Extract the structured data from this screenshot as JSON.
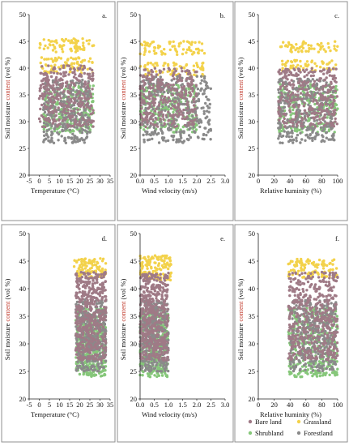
{
  "colors": {
    "bare_land": "#9f7a86",
    "grassland": "#f3d24b",
    "shrubland": "#86c77a",
    "forestland": "#8a8a8a",
    "red_word": "#c0392b",
    "panel_border": "#8f8f8f"
  },
  "legend": {
    "items": [
      {
        "label": "Bare land",
        "color_key": "bare_land"
      },
      {
        "label": "Grassland",
        "color_key": "grassland"
      },
      {
        "label": "Shrubland",
        "color_key": "shrubland"
      },
      {
        "label": "Forestland",
        "color_key": "forestland"
      }
    ]
  },
  "chart_data": [
    {
      "type": "scatter",
      "panel": "a.",
      "xlabel": "Temperature (°C)",
      "ylabel": "Soil moisture content (vol %)",
      "xlim": [
        -5,
        35
      ],
      "ylim": [
        20,
        50
      ],
      "xticks": [
        "-5",
        "0",
        "5",
        "10",
        "15",
        "20",
        "25",
        "30",
        "35"
      ],
      "yticks": [
        "20",
        "25",
        "30",
        "35",
        "40",
        "45",
        "50"
      ],
      "series": [
        {
          "name": "Grassland",
          "x_range": [
            0,
            27
          ],
          "y_bands": [
            [
              43.0,
              45.5
            ],
            [
              39.0,
              42.0
            ]
          ]
        },
        {
          "name": "Shrubland",
          "x_range": [
            2,
            27
          ],
          "y_bands": [
            [
              28.0,
              37.0
            ]
          ]
        },
        {
          "name": "Forestland",
          "x_range": [
            2,
            25
          ],
          "y_bands": [
            [
              26.0,
              38.0
            ]
          ]
        },
        {
          "name": "Bare land",
          "x_range": [
            0,
            27
          ],
          "y_bands": [
            [
              29.0,
              40.5
            ]
          ]
        }
      ]
    },
    {
      "type": "scatter",
      "panel": "b.",
      "xlabel": "Wind velocity (m/s)",
      "ylabel": "Soil moisture content (vol %)",
      "xlim": [
        0,
        3
      ],
      "ylim": [
        20,
        50
      ],
      "xticks": [
        "0.0",
        "0.5",
        "1.0",
        "1.5",
        "2.0",
        "2.5",
        "3.0"
      ],
      "yticks": [
        "20",
        "25",
        "30",
        "35",
        "40",
        "45",
        "50"
      ],
      "series": [
        {
          "name": "Grassland",
          "x_range": [
            0,
            2.3
          ],
          "y_bands": [
            [
              42.5,
              45.0
            ],
            [
              38.5,
              41.0
            ]
          ]
        },
        {
          "name": "Shrubland",
          "x_range": [
            0,
            2.0
          ],
          "y_bands": [
            [
              28.0,
              37.0
            ]
          ]
        },
        {
          "name": "Forestland",
          "x_range": [
            0,
            2.5
          ],
          "y_bands": [
            [
              26.0,
              38.5
            ]
          ]
        },
        {
          "name": "Bare land",
          "x_range": [
            0,
            2.0
          ],
          "y_bands": [
            [
              29.0,
              40.0
            ]
          ]
        }
      ]
    },
    {
      "type": "scatter",
      "panel": "c.",
      "xlabel": "Relative huminity (%)",
      "ylabel": "Soil moisture content (vol %)",
      "xlim": [
        0,
        100
      ],
      "ylim": [
        20,
        50
      ],
      "xticks": [
        "0",
        "20",
        "40",
        "60",
        "80",
        "100"
      ],
      "yticks": [
        "20",
        "25",
        "30",
        "35",
        "40",
        "45",
        "50"
      ],
      "series": [
        {
          "name": "Grassland",
          "x_range": [
            28,
            100
          ],
          "y_bands": [
            [
              43.0,
              45.0
            ],
            [
              39.5,
              41.5
            ]
          ]
        },
        {
          "name": "Shrubland",
          "x_range": [
            25,
            100
          ],
          "y_bands": [
            [
              28.0,
              37.0
            ]
          ]
        },
        {
          "name": "Forestland",
          "x_range": [
            25,
            96
          ],
          "y_bands": [
            [
              26.0,
              38.0
            ]
          ]
        },
        {
          "name": "Bare land",
          "x_range": [
            25,
            100
          ],
          "y_bands": [
            [
              29.0,
              40.0
            ]
          ]
        }
      ]
    },
    {
      "type": "scatter",
      "panel": "d.",
      "xlabel": "Temperature (°C)",
      "ylabel": "Soil moisture content (vol %)",
      "xlim": [
        -5,
        35
      ],
      "ylim": [
        20,
        50
      ],
      "xticks": [
        "-5",
        "0",
        "5",
        "10",
        "15",
        "20",
        "25",
        "30",
        "35"
      ],
      "yticks": [
        "20",
        "25",
        "30",
        "35",
        "40",
        "45",
        "50"
      ],
      "series": [
        {
          "name": "Grassland",
          "x_range": [
            17,
            33
          ],
          "y_bands": [
            [
              42.0,
              45.5
            ]
          ]
        },
        {
          "name": "Shrubland",
          "x_range": [
            18,
            33
          ],
          "y_bands": [
            [
              24.0,
              36.5
            ]
          ]
        },
        {
          "name": "Forestland",
          "x_range": [
            18,
            33
          ],
          "y_bands": [
            [
              25.0,
              38.0
            ]
          ]
        },
        {
          "name": "Bare land",
          "x_range": [
            18,
            33
          ],
          "y_bands": [
            [
              27.0,
              43.0
            ]
          ]
        }
      ]
    },
    {
      "type": "scatter",
      "panel": "e.",
      "xlabel": "Wind velocity (m/s)",
      "ylabel": "Soil moisture content (vol %)",
      "xlim": [
        0,
        3
      ],
      "ylim": [
        20,
        50
      ],
      "xticks": [
        "0.0",
        "0.5",
        "1.0",
        "1.5",
        "2.0",
        "2.5",
        "3.0"
      ],
      "yticks": [
        "20",
        "25",
        "30",
        "35",
        "40",
        "45",
        "50"
      ],
      "series": [
        {
          "name": "Grassland",
          "x_range": [
            0,
            1.1
          ],
          "y_bands": [
            [
              41.5,
              46.0
            ]
          ]
        },
        {
          "name": "Shrubland",
          "x_range": [
            0,
            1.0
          ],
          "y_bands": [
            [
              24.0,
              36.5
            ]
          ]
        },
        {
          "name": "Forestland",
          "x_range": [
            0,
            1.0
          ],
          "y_bands": [
            [
              25.0,
              38.0
            ]
          ]
        },
        {
          "name": "Bare land",
          "x_range": [
            0,
            1.0
          ],
          "y_bands": [
            [
              27.0,
              43.0
            ]
          ]
        }
      ]
    },
    {
      "type": "scatter",
      "panel": "f.",
      "xlabel": "Relative huminity (%)",
      "ylabel": "Soil moisture content (vol %)",
      "xlim": [
        0,
        100
      ],
      "ylim": [
        20,
        50
      ],
      "xticks": [
        "0",
        "20",
        "40",
        "60",
        "80",
        "100"
      ],
      "yticks": [
        "20",
        "25",
        "30",
        "35",
        "40",
        "45",
        "50"
      ],
      "series": [
        {
          "name": "Grassland",
          "x_range": [
            38,
            100
          ],
          "y_bands": [
            [
              42.0,
              45.5
            ]
          ]
        },
        {
          "name": "Shrubland",
          "x_range": [
            38,
            100
          ],
          "y_bands": [
            [
              24.0,
              36.5
            ]
          ]
        },
        {
          "name": "Forestland",
          "x_range": [
            40,
            98
          ],
          "y_bands": [
            [
              25.0,
              38.0
            ]
          ]
        },
        {
          "name": "Bare land",
          "x_range": [
            38,
            100
          ],
          "y_bands": [
            [
              27.0,
              43.0
            ]
          ]
        }
      ]
    }
  ]
}
